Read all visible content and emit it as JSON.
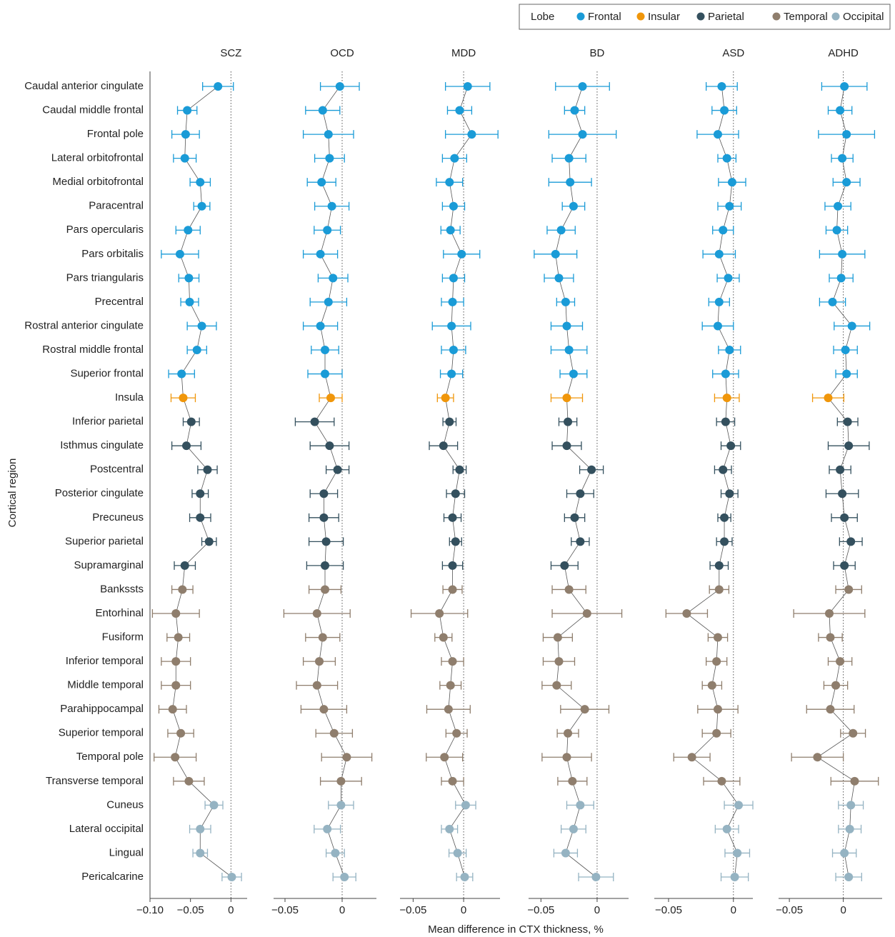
{
  "chart_data": {
    "type": "forest",
    "legend_title": "Lobe",
    "xlabel": "Mean difference in CTX thickness, %",
    "ylabel": "Cortical region",
    "lobes": [
      {
        "name": "Frontal",
        "color": "#1a9bd7",
        "regions": [
          "Caudal anterior cingulate",
          "Caudal middle frontal",
          "Frontal pole",
          "Lateral orbitofrontal",
          "Medial orbitofrontal",
          "Paracentral",
          "Pars opercularis",
          "Pars orbitalis",
          "Pars triangularis",
          "Precentral",
          "Rostral anterior cingulate",
          "Rostral middle frontal",
          "Superior frontal"
        ]
      },
      {
        "name": "Insular",
        "color": "#f0960a",
        "regions": [
          "Insula"
        ]
      },
      {
        "name": "Parietal",
        "color": "#34505e",
        "regions": [
          "Inferior parietal",
          "Isthmus cingulate",
          "Postcentral",
          "Posterior cingulate",
          "Precuneus",
          "Superior parietal",
          "Supramarginal"
        ]
      },
      {
        "name": "Temporal",
        "color": "#8f7e6d",
        "regions": [
          "Bankssts",
          "Entorhinal",
          "Fusiform",
          "Inferior temporal",
          "Middle temporal",
          "Parahippocampal",
          "Superior temporal",
          "Temporal pole",
          "Transverse temporal"
        ]
      },
      {
        "name": "Occipital",
        "color": "#95b3c2",
        "regions": [
          "Cuneus",
          "Lateral occipital",
          "Lingual",
          "Pericalcarine"
        ]
      }
    ],
    "panels": [
      {
        "title": "SCZ",
        "xlim": [
          -0.1,
          0.02
        ],
        "xticks": [
          {
            "value": -0.1,
            "label": "−0.10"
          },
          {
            "value": -0.05,
            "label": "−0.05"
          },
          0
        ],
        "values": [
          -0.016,
          -0.054,
          -0.056,
          -0.057,
          -0.038,
          -0.036,
          -0.053,
          -0.063,
          -0.052,
          -0.051,
          -0.036,
          -0.042,
          -0.061,
          -0.059,
          -0.049,
          -0.055,
          -0.029,
          -0.038,
          -0.038,
          -0.027,
          -0.057,
          -0.06,
          -0.068,
          -0.065,
          -0.068,
          -0.068,
          -0.072,
          -0.062,
          -0.069,
          -0.052,
          -0.021,
          -0.038,
          -0.038,
          0.001
        ],
        "errors": [
          0.019,
          0.012,
          0.017,
          0.014,
          0.0125,
          0.01,
          0.015,
          0.023,
          0.0125,
          0.011,
          0.018,
          0.012,
          0.016,
          0.015,
          0.01,
          0.018,
          0.012,
          0.01,
          0.013,
          0.009,
          0.013,
          0.013,
          0.029,
          0.014,
          0.018,
          0.018,
          0.017,
          0.016,
          0.026,
          0.019,
          0.011,
          0.013,
          0.009,
          0.012
        ]
      },
      {
        "title": "OCD",
        "xlim": [
          -0.06,
          0.03
        ],
        "xticks": [
          {
            "value": -0.05,
            "label": "−0.05"
          },
          0
        ],
        "values": [
          -0.002,
          -0.017,
          -0.012,
          -0.011,
          -0.018,
          -0.009,
          -0.013,
          -0.019,
          -0.008,
          -0.012,
          -0.019,
          -0.015,
          -0.015,
          -0.01,
          -0.024,
          -0.011,
          -0.004,
          -0.016,
          -0.016,
          -0.014,
          -0.015,
          -0.015,
          -0.022,
          -0.017,
          -0.02,
          -0.022,
          -0.016,
          -0.007,
          0.004,
          -0.001,
          -0.001,
          -0.013,
          -0.006,
          0.002
        ],
        "errors": [
          0.017,
          0.015,
          0.022,
          0.013,
          0.0125,
          0.015,
          0.0115,
          0.015,
          0.013,
          0.016,
          0.015,
          0.012,
          0.015,
          0.01,
          0.017,
          0.017,
          0.01,
          0.012,
          0.013,
          0.015,
          0.016,
          0.014,
          0.029,
          0.015,
          0.014,
          0.018,
          0.02,
          0.016,
          0.022,
          0.018,
          0.011,
          0.0115,
          0.008,
          0.01
        ]
      },
      {
        "title": "MDD",
        "xlim": [
          -0.063,
          0.036
        ],
        "xticks": [
          {
            "value": -0.05,
            "label": "−0.05"
          },
          0
        ],
        "values": [
          0.004,
          -0.004,
          0.008,
          -0.009,
          -0.014,
          -0.01,
          -0.013,
          -0.002,
          -0.01,
          -0.011,
          -0.012,
          -0.01,
          -0.012,
          -0.018,
          -0.014,
          -0.02,
          -0.004,
          -0.008,
          -0.011,
          -0.008,
          -0.011,
          -0.011,
          -0.024,
          -0.02,
          -0.011,
          -0.013,
          -0.015,
          -0.007,
          -0.019,
          -0.011,
          0.002,
          -0.014,
          -0.006,
          0.001
        ],
        "errors": [
          0.022,
          0.012,
          0.026,
          0.012,
          0.013,
          0.011,
          0.0095,
          0.018,
          0.011,
          0.011,
          0.019,
          0.012,
          0.011,
          0.008,
          0.0065,
          0.014,
          0.0065,
          0.009,
          0.0085,
          0.006,
          0.01,
          0.0095,
          0.028,
          0.0085,
          0.011,
          0.0105,
          0.0215,
          0.0105,
          0.018,
          0.011,
          0.01,
          0.008,
          0.0085,
          0.008
        ]
      },
      {
        "title": "BD",
        "xlim": [
          -0.061,
          0.028
        ],
        "xticks": [
          {
            "value": -0.05,
            "label": "−0.05"
          },
          0
        ],
        "values": [
          -0.013,
          -0.02,
          -0.013,
          -0.025,
          -0.024,
          -0.021,
          -0.032,
          -0.037,
          -0.034,
          -0.028,
          -0.027,
          -0.025,
          -0.021,
          -0.027,
          -0.026,
          -0.027,
          -0.005,
          -0.015,
          -0.02,
          -0.015,
          -0.029,
          -0.025,
          -0.009,
          -0.035,
          -0.034,
          -0.036,
          -0.011,
          -0.026,
          -0.027,
          -0.022,
          -0.015,
          -0.021,
          -0.028,
          -0.001
        ],
        "errors": [
          0.024,
          0.009,
          0.03,
          0.015,
          0.019,
          0.01,
          0.0125,
          0.019,
          0.013,
          0.008,
          0.014,
          0.016,
          0.012,
          0.014,
          0.008,
          0.013,
          0.0105,
          0.012,
          0.009,
          0.008,
          0.012,
          0.015,
          0.031,
          0.013,
          0.014,
          0.013,
          0.0215,
          0.0095,
          0.022,
          0.013,
          0.012,
          0.011,
          0.0105,
          0.0155
        ]
      },
      {
        "title": "ASD",
        "xlim": [
          -0.061,
          0.015
        ],
        "xticks": [
          {
            "value": -0.05,
            "label": "−0.05"
          },
          0
        ],
        "values": [
          -0.009,
          -0.007,
          -0.012,
          -0.005,
          -0.001,
          -0.003,
          -0.008,
          -0.011,
          -0.004,
          -0.011,
          -0.012,
          -0.003,
          -0.006,
          -0.005,
          -0.006,
          -0.002,
          -0.008,
          -0.003,
          -0.007,
          -0.007,
          -0.011,
          -0.011,
          -0.036,
          -0.012,
          -0.013,
          -0.0165,
          -0.012,
          -0.013,
          -0.032,
          -0.009,
          0.004,
          -0.005,
          0.003,
          0.001
        ],
        "errors": [
          0.012,
          0.0095,
          0.016,
          0.007,
          0.0105,
          0.009,
          0.008,
          0.0125,
          0.0085,
          0.008,
          0.012,
          0.0085,
          0.01,
          0.0095,
          0.007,
          0.0075,
          0.0065,
          0.0065,
          0.005,
          0.006,
          0.007,
          0.0075,
          0.016,
          0.0075,
          0.008,
          0.0075,
          0.0155,
          0.011,
          0.014,
          0.014,
          0.011,
          0.009,
          0.0095,
          0.0105
        ]
      },
      {
        "title": "ADHD",
        "xlim": [
          -0.06,
          0.036
        ],
        "xticks": [
          {
            "value": -0.05,
            "label": "−0.05"
          },
          0
        ],
        "values": [
          0.001,
          -0.003,
          0.003,
          -0.001,
          0.003,
          -0.005,
          -0.006,
          -0.001,
          -0.002,
          -0.01,
          0.008,
          0.002,
          0.003,
          -0.014,
          0.004,
          0.005,
          -0.003,
          -0.001,
          0.001,
          0.007,
          0.001,
          0.005,
          -0.013,
          -0.012,
          -0.003,
          -0.007,
          -0.012,
          0.009,
          -0.024,
          0.0105,
          0.007,
          0.006,
          0.001,
          0.005
        ],
        "errors": [
          0.021,
          0.011,
          0.026,
          0.01,
          0.0125,
          0.012,
          0.01,
          0.021,
          0.011,
          0.012,
          0.0165,
          0.011,
          0.01,
          0.0145,
          0.0095,
          0.019,
          0.01,
          0.015,
          0.012,
          0.0105,
          0.01,
          0.012,
          0.033,
          0.011,
          0.011,
          0.011,
          0.022,
          0.0115,
          0.024,
          0.022,
          0.0115,
          0.0105,
          0.011,
          0.012
        ]
      }
    ]
  }
}
